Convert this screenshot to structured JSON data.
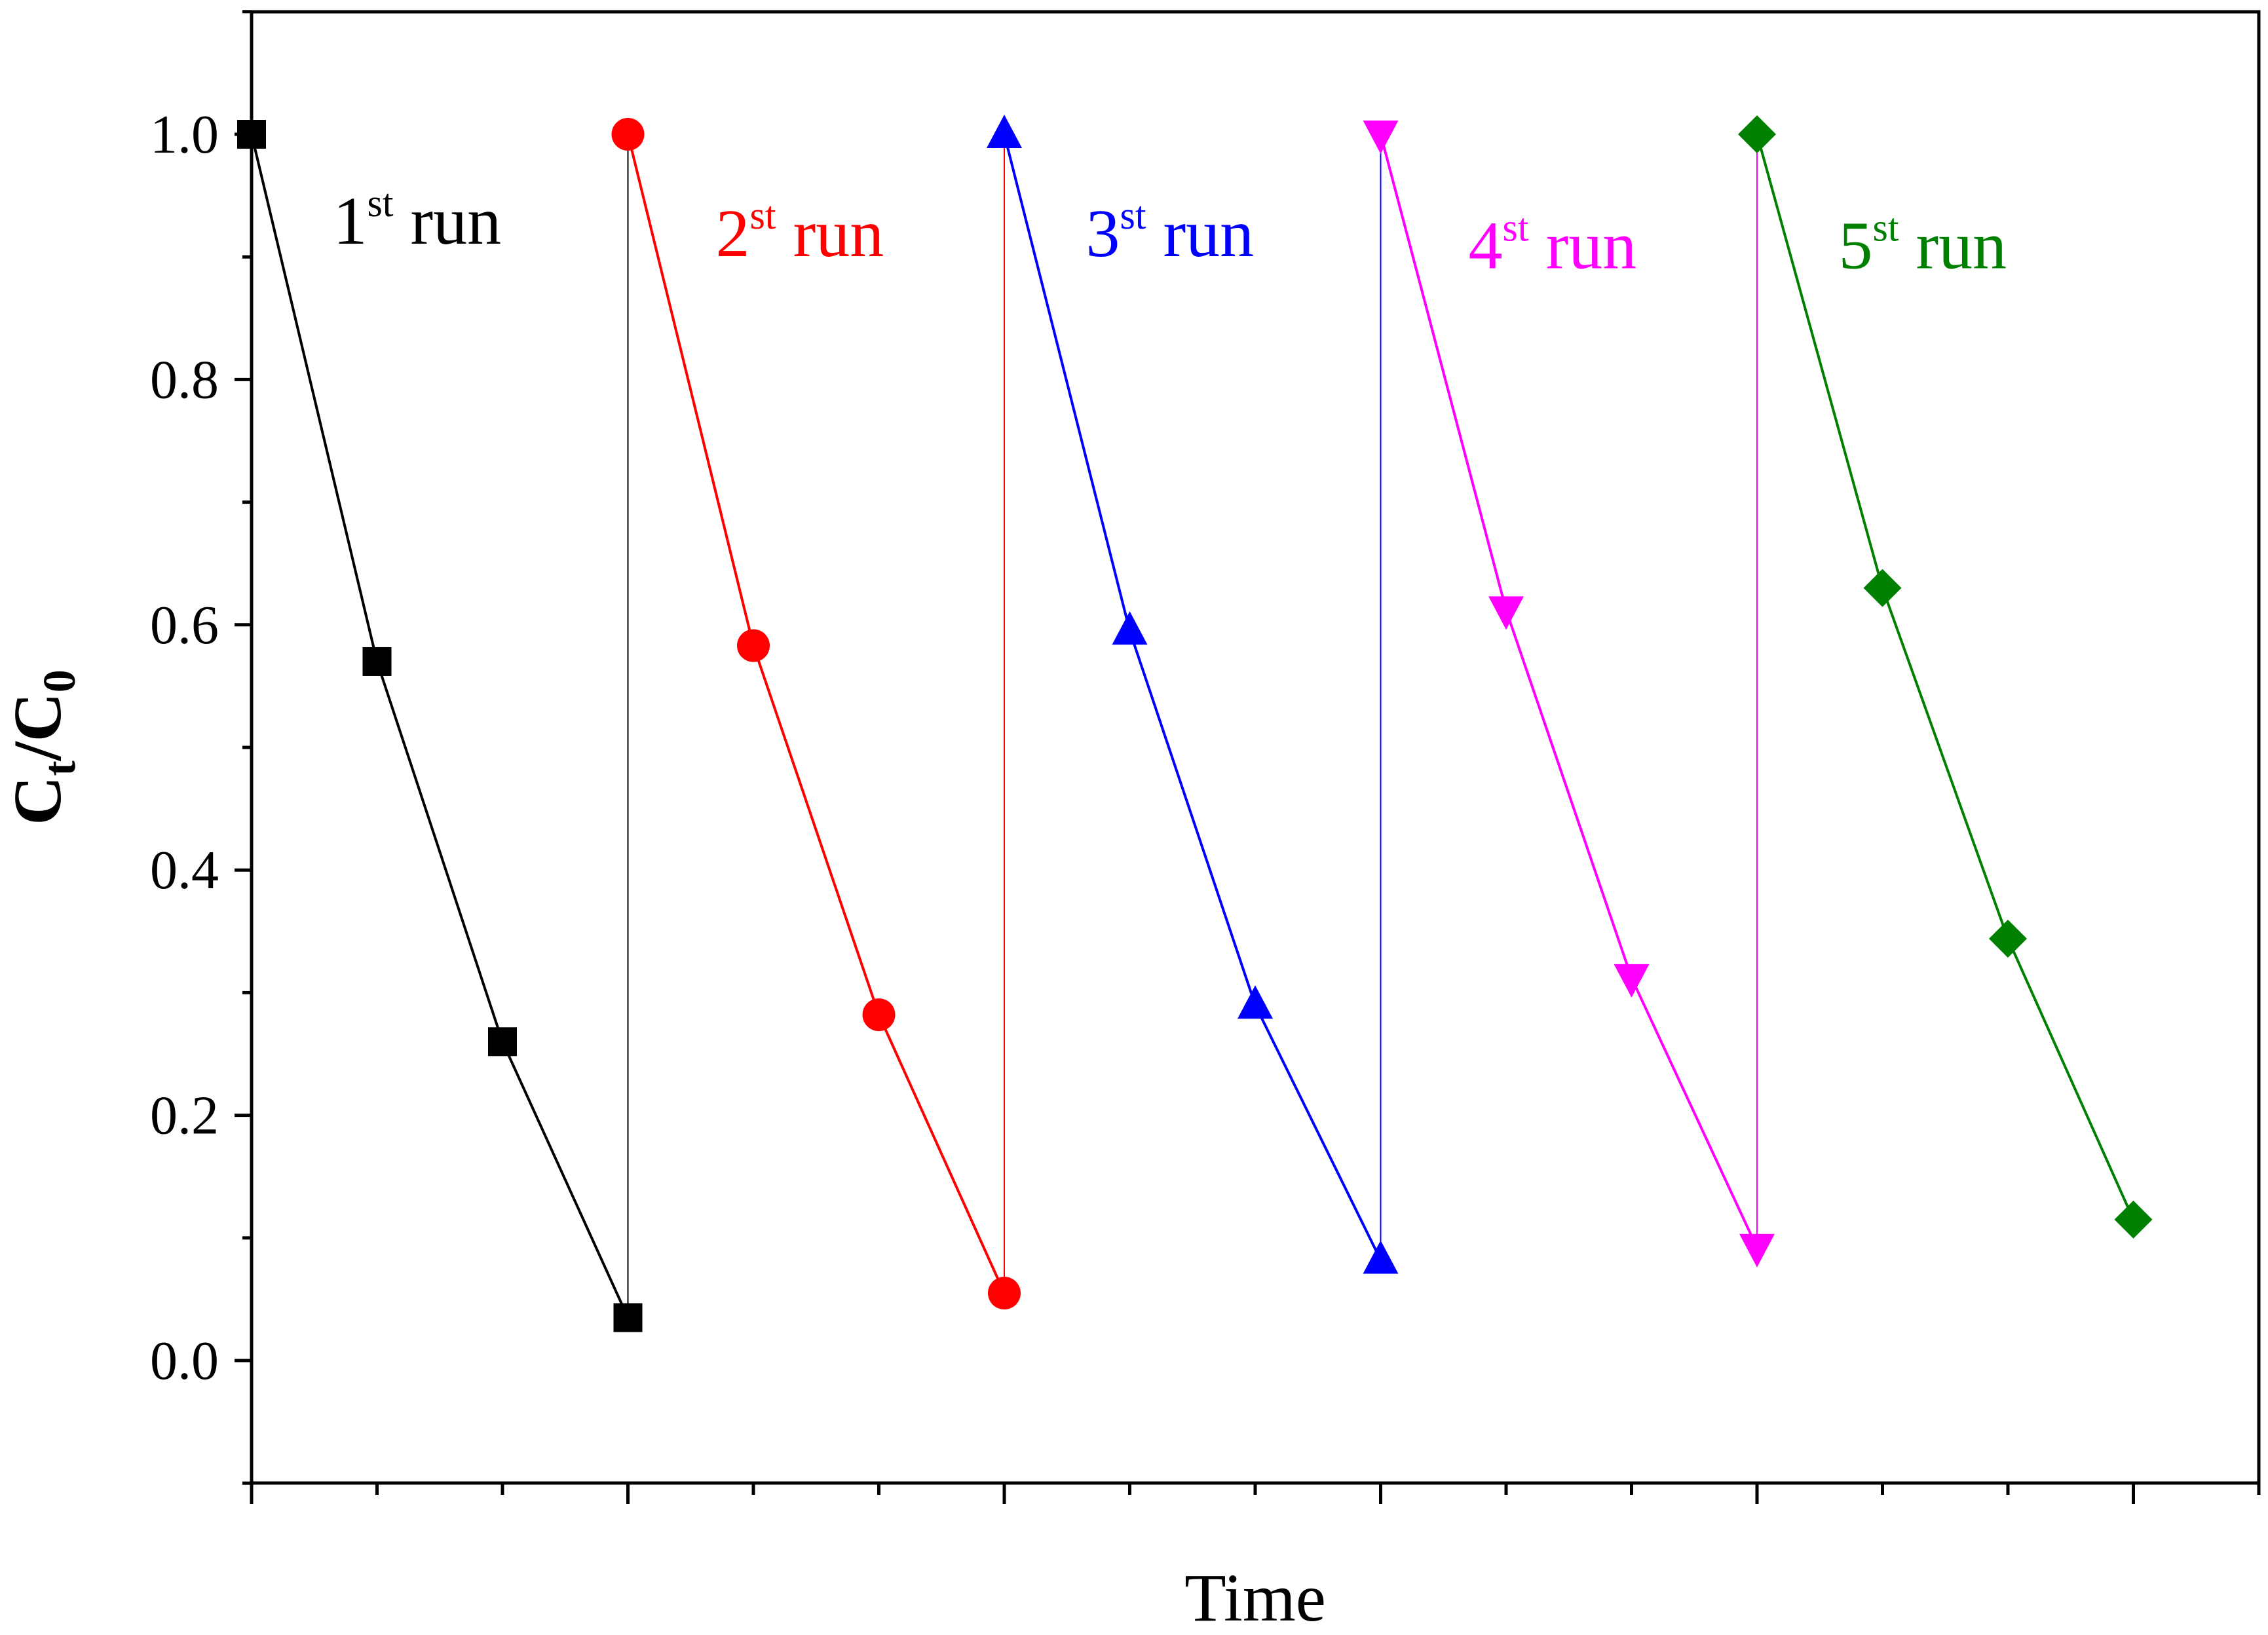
{
  "chart_data": {
    "type": "line",
    "title": "",
    "xlabel": "Time",
    "ylabel": {
      "main": "C",
      "sub1": "t",
      "sep": "/",
      "main2": "C",
      "sub2": "0"
    },
    "xlim": [
      0,
      16
    ],
    "ylim": [
      -0.1,
      1.1
    ],
    "yticks": [
      0.0,
      0.2,
      0.4,
      0.6,
      0.8,
      1.0
    ],
    "ytick_labels": [
      "0.0",
      "0.2",
      "0.4",
      "0.6",
      "0.8",
      "1.0"
    ],
    "ytick_minor": [
      -0.1,
      0.1,
      0.3,
      0.5,
      0.7,
      0.9,
      1.1
    ],
    "xticks_major": [
      0,
      3,
      6,
      9,
      12,
      15
    ],
    "xticks_minor": [
      1,
      2,
      4,
      5,
      7,
      8,
      10,
      11,
      13,
      14,
      16
    ],
    "x_tick_labels_shown": false,
    "grid": false,
    "series": [
      {
        "name": "1st run",
        "label_num": "1",
        "label_sup": "st",
        "label_word": "run",
        "color": "#000000",
        "marker": "square",
        "x": [
          0,
          1,
          2,
          3
        ],
        "values": [
          1.0,
          0.57,
          0.26,
          0.035
        ],
        "label_anchor": [
          0.65,
          0.93
        ]
      },
      {
        "name": "2st run",
        "label_num": "2",
        "label_sup": "st",
        "label_word": "run",
        "color": "#ff0000",
        "marker": "circle",
        "x": [
          3,
          4,
          5,
          6
        ],
        "values": [
          1.0,
          0.583,
          0.282,
          0.055
        ],
        "label_anchor": [
          3.7,
          0.92
        ]
      },
      {
        "name": "3st run",
        "label_num": "3",
        "label_sup": "st",
        "label_word": "run",
        "color": "#0000ff",
        "marker": "triangle-up",
        "x": [
          6,
          7,
          8,
          9
        ],
        "values": [
          1.0,
          0.595,
          0.29,
          0.082
        ],
        "label_anchor": [
          6.65,
          0.92
        ]
      },
      {
        "name": "4st run",
        "label_num": "4",
        "label_sup": "st",
        "label_word": "run",
        "color": "#ff00ff",
        "marker": "triangle-down",
        "x": [
          9,
          10,
          11,
          12
        ],
        "values": [
          1.0,
          0.612,
          0.312,
          0.092
        ],
        "label_anchor": [
          9.7,
          0.91
        ]
      },
      {
        "name": "5st run",
        "label_num": "5",
        "label_sup": "st",
        "label_word": "run",
        "color": "#008000",
        "marker": "diamond",
        "x": [
          12,
          13,
          14,
          15
        ],
        "values": [
          1.0,
          0.63,
          0.344,
          0.115
        ],
        "label_anchor": [
          12.65,
          0.91
        ]
      }
    ]
  }
}
